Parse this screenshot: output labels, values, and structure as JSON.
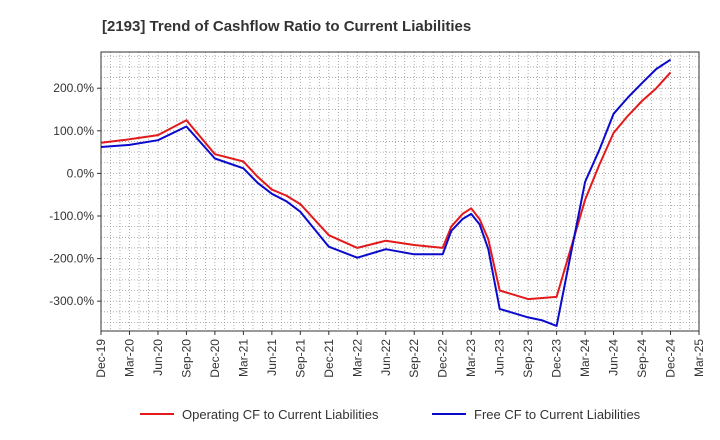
{
  "chart_data": {
    "type": "line",
    "title": "[2193]  Trend of Cashflow Ratio to Current Liabilities",
    "xlabel": "",
    "ylabel": "",
    "x_ticks": [
      "Dec-19",
      "Mar-20",
      "Jun-20",
      "Sep-20",
      "Dec-20",
      "Mar-21",
      "Jun-21",
      "Sep-21",
      "Dec-21",
      "Mar-22",
      "Jun-22",
      "Sep-22",
      "Dec-22",
      "Mar-23",
      "Jun-23",
      "Sep-23",
      "Dec-23",
      "Mar-24",
      "Jun-24",
      "Sep-24",
      "Dec-24",
      "Mar-25"
    ],
    "y_ticks": [
      "200.0%",
      "100.0%",
      "0.0%",
      "-100.0%",
      "-200.0%",
      "-300.0%"
    ],
    "y_tick_values": [
      200,
      100,
      0,
      -100,
      -200,
      -300
    ],
    "xlim": [
      0,
      21
    ],
    "ylim": [
      -370,
      285
    ],
    "grid": true,
    "legend_position": "bottom",
    "series": [
      {
        "name": "Operating CF to Current Liabilities",
        "color": "#e31a1c",
        "x": [
          0,
          1,
          2,
          3,
          4,
          5,
          5.5,
          6,
          6.5,
          7,
          8,
          9,
          10,
          11,
          12,
          12.3,
          12.7,
          13,
          13.3,
          13.6,
          14,
          15,
          16,
          17,
          17.5,
          18,
          18.5,
          19,
          19.5,
          20
        ],
        "values": [
          72,
          80,
          90,
          125,
          45,
          28,
          -8,
          -38,
          -52,
          -72,
          -145,
          -175,
          -158,
          -168,
          -175,
          -125,
          -95,
          -82,
          -108,
          -155,
          -275,
          -295,
          -290,
          -62,
          20,
          95,
          135,
          170,
          200,
          237
        ]
      },
      {
        "name": "Free CF to Current Liabilities",
        "color": "#0a0acd",
        "x": [
          0,
          1,
          2,
          3,
          4,
          5,
          5.5,
          6,
          6.5,
          7,
          8,
          9,
          10,
          11,
          12,
          12.3,
          12.7,
          13,
          13.3,
          13.6,
          14,
          15,
          15.5,
          16,
          17,
          17.5,
          18,
          18.5,
          19,
          19.5,
          20
        ],
        "values": [
          62,
          67,
          78,
          110,
          35,
          12,
          -22,
          -48,
          -65,
          -90,
          -172,
          -198,
          -178,
          -190,
          -190,
          -135,
          -107,
          -95,
          -120,
          -178,
          -318,
          -338,
          -345,
          -358,
          -20,
          55,
          140,
          178,
          212,
          245,
          267
        ]
      }
    ]
  }
}
